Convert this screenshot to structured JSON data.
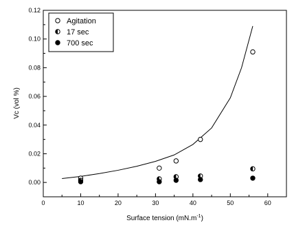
{
  "chart_data": {
    "type": "scatter",
    "xlabel": "Surface tension (mN.m",
    "xlabel_sup": "-1",
    "xlabel_suffix": ")",
    "ylabel": "Vc (vol %)",
    "xlim": [
      0,
      65
    ],
    "ylim": [
      -0.01,
      0.12
    ],
    "x_ticks": [
      0,
      10,
      20,
      30,
      40,
      50,
      60
    ],
    "x_tick_labels": [
      "0",
      "10",
      "20",
      "30",
      "40",
      "50",
      "60"
    ],
    "y_ticks": [
      0.0,
      0.02,
      0.04,
      0.06,
      0.08,
      0.1,
      0.12
    ],
    "y_tick_labels": [
      "0.00",
      "0.02",
      "0.04",
      "0.06",
      "0.08",
      "0.10",
      "0.12"
    ],
    "grid": false,
    "legend_position": "top-left",
    "series": [
      {
        "name": "Agitation",
        "marker": "open-circle",
        "points": [
          [
            10,
            0.003
          ],
          [
            31,
            0.01
          ],
          [
            35.5,
            0.015
          ],
          [
            42,
            0.03
          ],
          [
            56,
            0.091
          ]
        ]
      },
      {
        "name": "17 sec",
        "marker": "half-filled-circle",
        "points": [
          [
            10,
            0.0015
          ],
          [
            31,
            0.0025
          ],
          [
            35.5,
            0.004
          ],
          [
            42,
            0.0045
          ],
          [
            56,
            0.0095
          ]
        ]
      },
      {
        "name": "700 sec",
        "marker": "filled-circle",
        "points": [
          [
            10,
            0.0005
          ],
          [
            31,
            0.0005
          ],
          [
            35.5,
            0.0015
          ],
          [
            42,
            0.002
          ],
          [
            56,
            0.003
          ]
        ]
      }
    ],
    "fit_curve": {
      "x": [
        5,
        10,
        15,
        20,
        25,
        30,
        35,
        40,
        45,
        50,
        53,
        56
      ],
      "y": [
        0.0027,
        0.0042,
        0.0062,
        0.0085,
        0.0113,
        0.0147,
        0.0192,
        0.0265,
        0.038,
        0.059,
        0.08,
        0.109
      ]
    }
  }
}
